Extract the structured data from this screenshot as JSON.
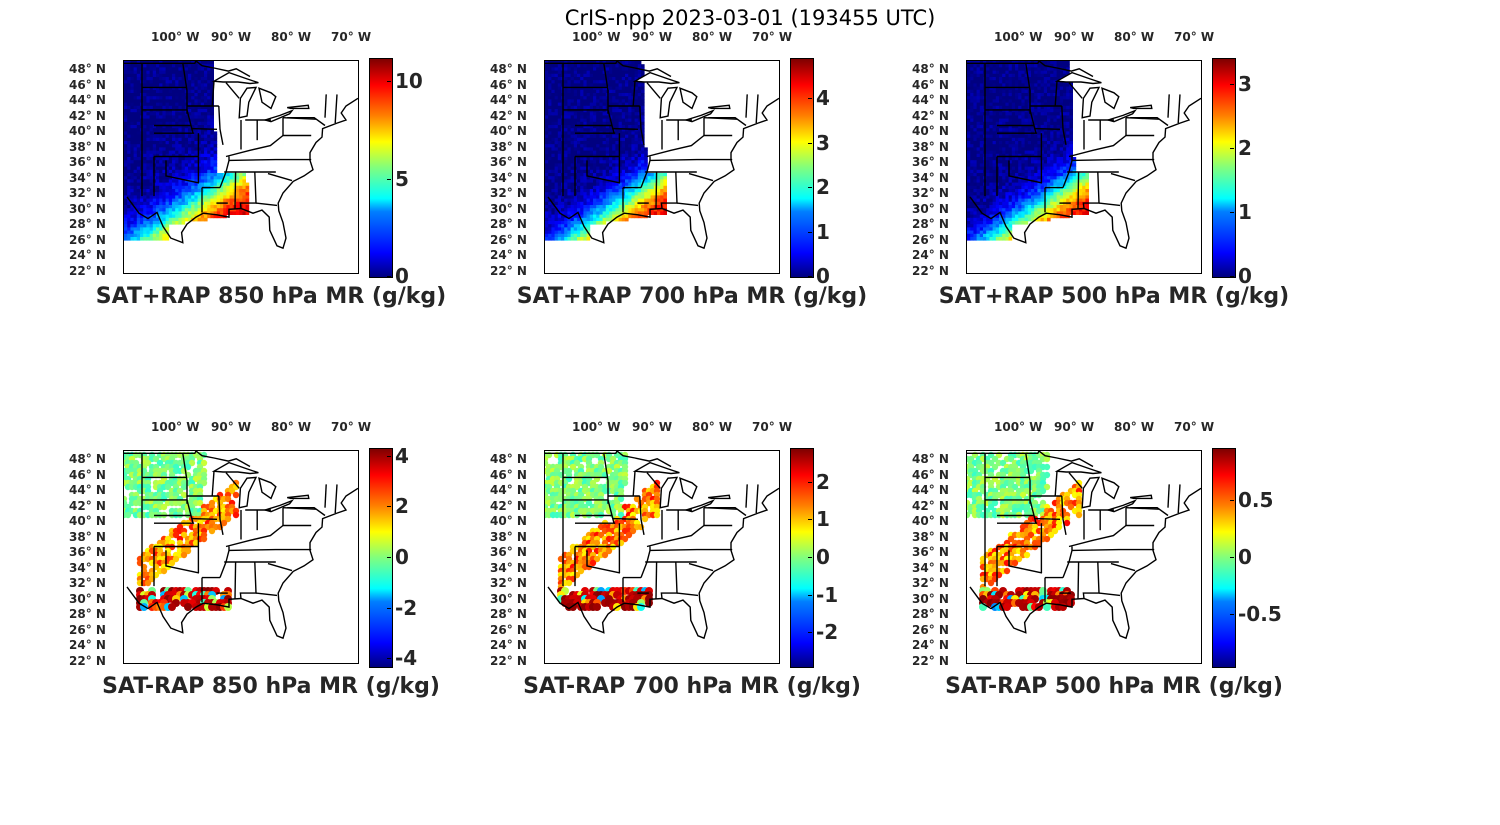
{
  "title": "CrIS-npp 2023-03-01 (193455 UTC)",
  "lon_labels": [
    "100° W",
    "90° W",
    "80° W",
    "70° W"
  ],
  "lat_labels": [
    "48° N",
    "46° N",
    "44° N",
    "42° N",
    "40° N",
    "38° N",
    "36° N",
    "34° N",
    "32° N",
    "30° N",
    "28° N",
    "26° N",
    "24° N",
    "22° N"
  ],
  "colormap": "jet",
  "colors": {
    "low": "#00007f",
    "blue": "#0000ff",
    "cyan": "#00ffff",
    "green": "#7fff7f",
    "yellow": "#ffff00",
    "orange": "#ff7f00",
    "red": "#ff0000",
    "high": "#7f0000",
    "border": "#000000"
  },
  "panels": [
    {
      "title": "SAT+RAP 850 hPa MR (g/kg)",
      "field": "sum",
      "clim": [
        0,
        11.2
      ],
      "ticks": [
        0,
        5,
        10
      ]
    },
    {
      "title": "SAT+RAP 700 hPa MR (g/kg)",
      "field": "sum",
      "clim": [
        0,
        4.9
      ],
      "ticks": [
        0,
        1,
        2,
        3,
        4
      ]
    },
    {
      "title": "SAT+RAP 500 hPa MR (g/kg)",
      "field": "sum",
      "clim": [
        0,
        3.4
      ],
      "ticks": [
        0,
        1,
        2,
        3
      ]
    },
    {
      "title": "SAT-RAP 850 hPa MR (g/kg)",
      "field": "diff",
      "clim": [
        -4.3,
        4.3
      ],
      "ticks": [
        -4,
        -2,
        0,
        2,
        4
      ]
    },
    {
      "title": "SAT-RAP 700 hPa MR (g/kg)",
      "field": "diff",
      "clim": [
        -2.9,
        2.9
      ],
      "ticks": [
        -2,
        -1,
        0,
        1,
        2
      ]
    },
    {
      "title": "SAT-RAP 500 hPa MR (g/kg)",
      "field": "diff",
      "clim": [
        -0.95,
        0.95
      ],
      "ticks": [
        -0.5,
        0,
        0.5
      ]
    }
  ]
}
